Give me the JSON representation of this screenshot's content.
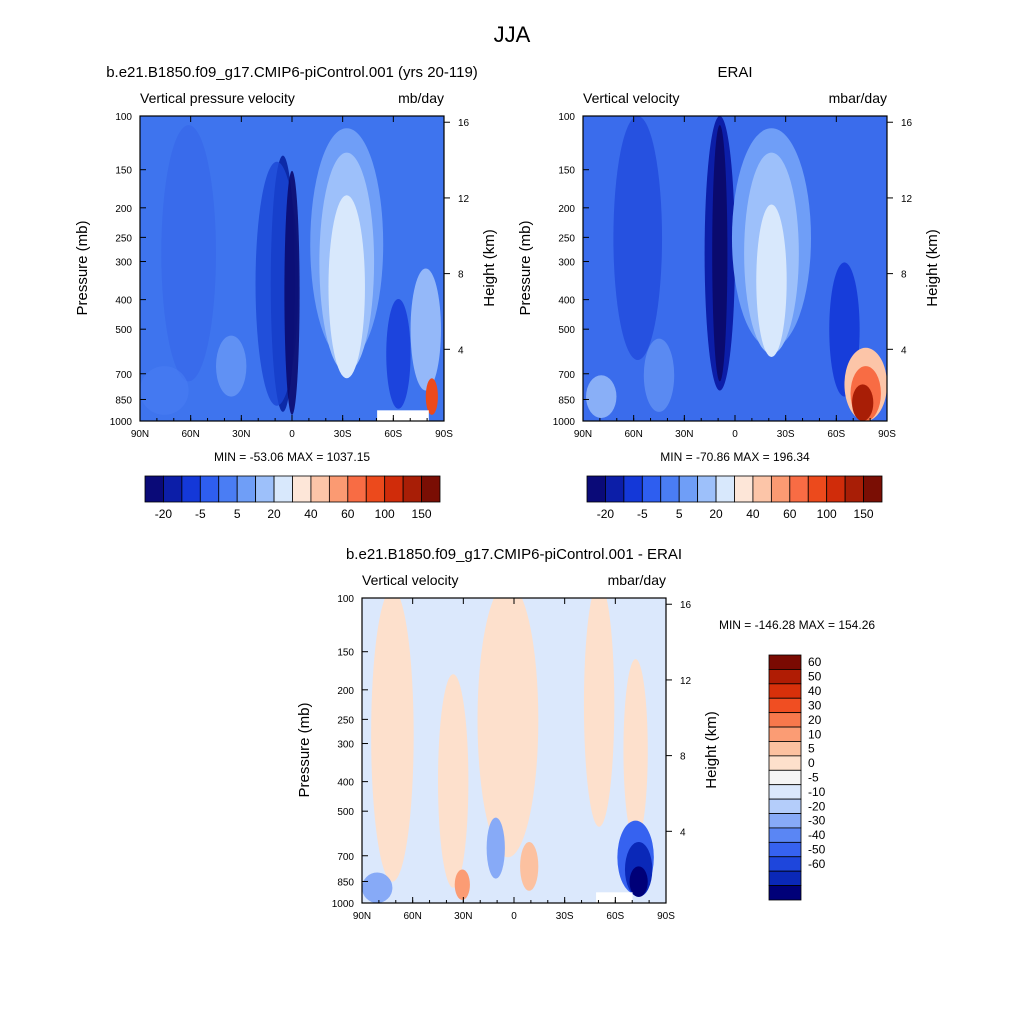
{
  "title": "JJA",
  "panels": [
    {
      "title": "b.e21.B1850.f09_g17.CMIP6-piControl.001 (yrs 20-119)",
      "left_label": "Vertical pressure velocity",
      "right_label": "mb/day",
      "ylabel": "Pressure (mb)",
      "y2label": "Height (km)",
      "min_max": "MIN = -53.06  MAX = 1037.15"
    },
    {
      "title": "ERAI",
      "left_label": "Vertical velocity",
      "right_label": "mbar/day",
      "ylabel": "Pressure (mb)",
      "y2label": "Height (km)",
      "min_max": "MIN = -70.86  MAX = 196.34"
    },
    {
      "title": "b.e21.B1850.f09_g17.CMIP6-piControl.001 - ERAI",
      "left_label": "Vertical velocity",
      "right_label": "mbar/day",
      "ylabel": "Pressure (mb)",
      "y2label": "Height (km)",
      "min_max": "MIN = -146.28  MAX = 154.26"
    }
  ],
  "chart_data": {
    "type": "heatmap",
    "x_ticks": [
      "90N",
      "60N",
      "30N",
      "0",
      "30S",
      "60S",
      "90S"
    ],
    "y_ticks": [
      "100",
      "150",
      "200",
      "250",
      "300",
      "400",
      "500",
      "700",
      "850",
      "1000"
    ],
    "y_tick_values": [
      100,
      150,
      200,
      250,
      300,
      400,
      500,
      700,
      850,
      1000
    ],
    "y_scale": "log",
    "ylim": [
      1000,
      100
    ],
    "y2_ticks": [
      "16",
      "12",
      "8",
      "4"
    ],
    "y2_tick_values": [
      16,
      12,
      8,
      4
    ],
    "colorbar_top": {
      "colors": [
        "#0a0a78",
        "#0c1ea8",
        "#1438d8",
        "#2e5ef0",
        "#4a7df4",
        "#6f9ef7",
        "#9dc0fa",
        "#d8e8fc",
        "#fde6d8",
        "#fcc5a8",
        "#fb9a72",
        "#f86c44",
        "#ec4a1c",
        "#d02c0a",
        "#a81e06",
        "#7a0e04"
      ],
      "labels": [
        "-20",
        "-5",
        "5",
        "20",
        "40",
        "60",
        "100",
        "150"
      ]
    },
    "colorbar_diff": {
      "colors": [
        "#000078",
        "#0a28b8",
        "#1e46dc",
        "#3662f0",
        "#5a86f4",
        "#87aaf7",
        "#b4cdfa",
        "#dbe8fc",
        "#f5f5f5",
        "#fde0cc",
        "#fcc1a0",
        "#fb9c74",
        "#f8784c",
        "#f04e22",
        "#d8300a",
        "#b01c04",
        "#7a0a02"
      ],
      "labels": [
        "-60",
        "-50",
        "-40",
        "-30",
        "-20",
        "-10",
        "-5",
        "0",
        "5",
        "10",
        "20",
        "30",
        "40",
        "50",
        "60"
      ]
    }
  }
}
